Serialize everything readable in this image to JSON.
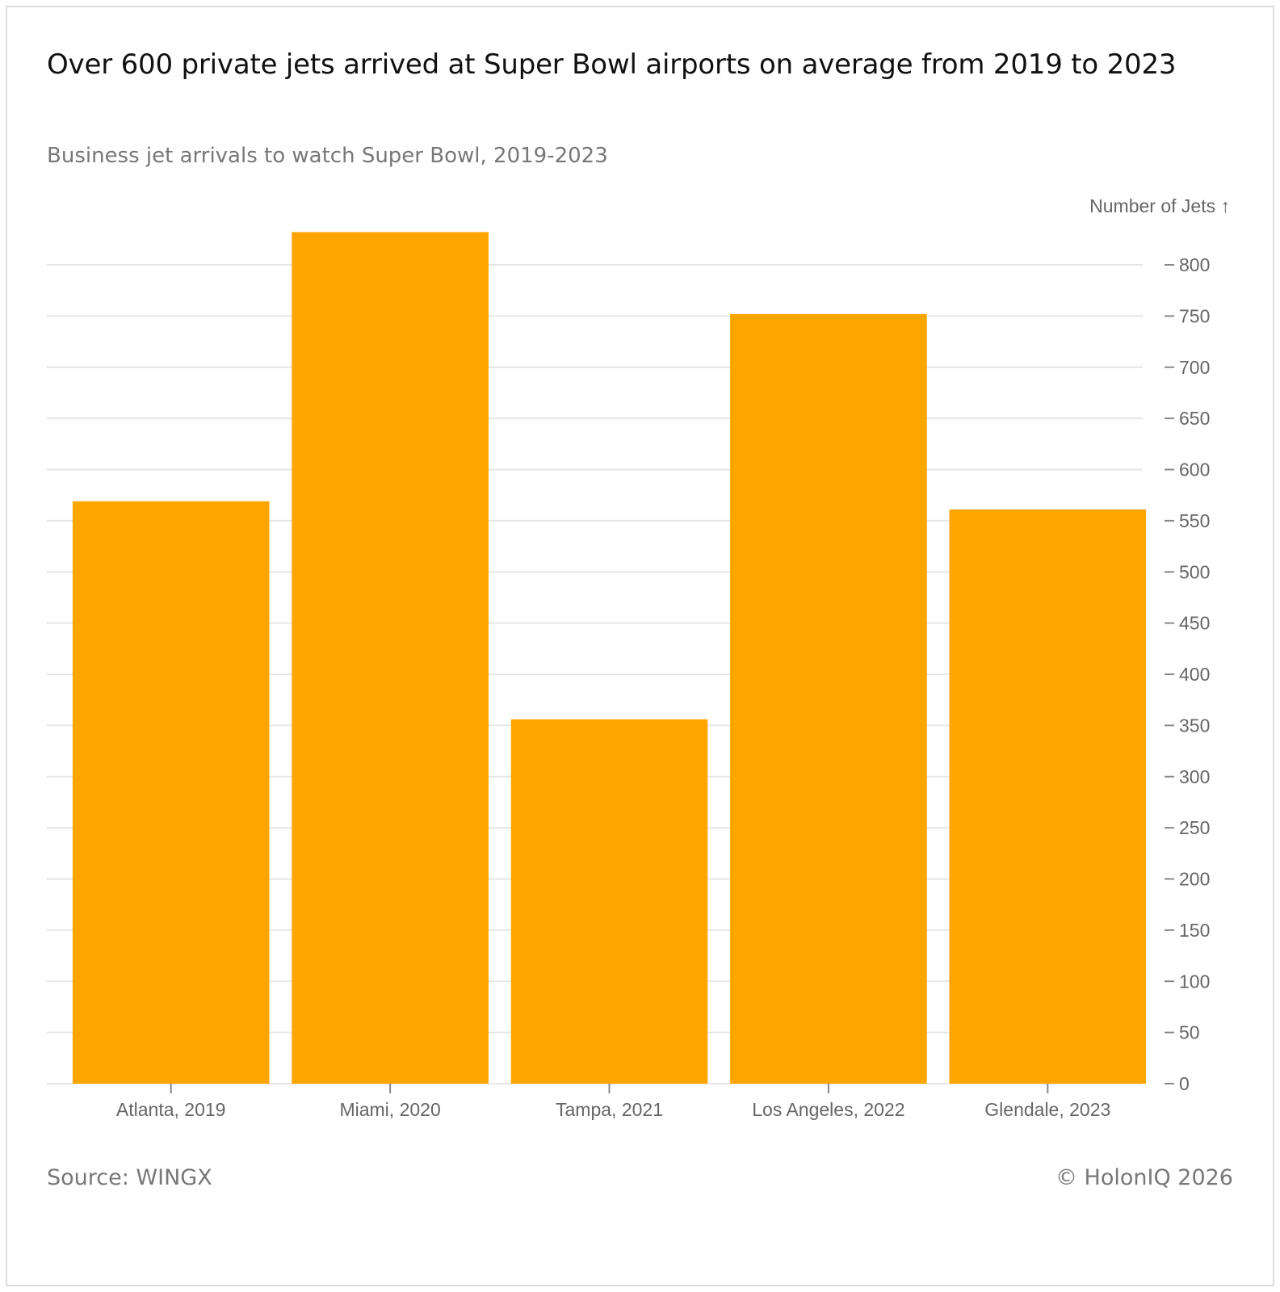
{
  "header": {
    "title": "Over 600 private jets arrived at Super Bowl airports on average from 2019 to 2023",
    "subtitle": "Business jet arrivals to watch Super Bowl, 2019-2023"
  },
  "footer": {
    "source": "Source: WINGX",
    "copyright": "© HolonIQ 2026"
  },
  "colors": {
    "bar": "#FFA500",
    "grid": "#e6e6e6",
    "axis_text": "#666666"
  },
  "chart_data": {
    "type": "bar",
    "title": "Over 600 private jets arrived at Super Bowl airports on average from 2019 to 2023",
    "subtitle": "Business jet arrivals to watch Super Bowl, 2019-2023",
    "categories": [
      "Atlanta, 2019",
      "Miami, 2020",
      "Tampa, 2021",
      "Los Angeles, 2022",
      "Glendale, 2023"
    ],
    "values": [
      569,
      832,
      356,
      752,
      561
    ],
    "xlabel": "",
    "ylabel": "Number of Jets ↑",
    "ylim": [
      0,
      800
    ],
    "yticks": [
      0,
      50,
      100,
      150,
      200,
      250,
      300,
      350,
      400,
      450,
      500,
      550,
      600,
      650,
      700,
      750,
      800
    ],
    "y_axis_position": "right",
    "grid": true,
    "legend": "none"
  }
}
